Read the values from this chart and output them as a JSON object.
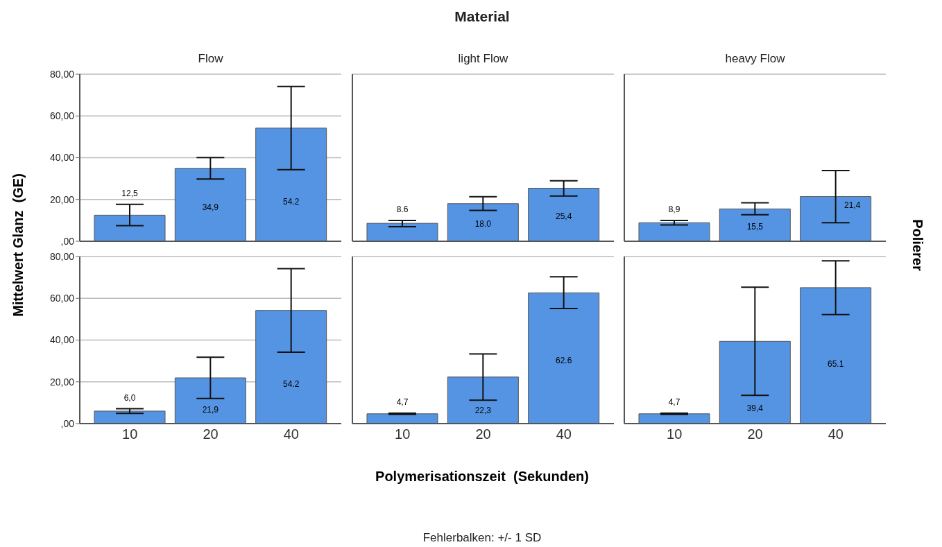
{
  "chart_data": [
    {
      "type": "bar",
      "title": "Flow",
      "ylabel": "Mittelwert Glanz  (GE)",
      "annotations": [
        "Material",
        "Fehlerbalken: +/- 1 SD"
      ],
      "categories": [
        "10",
        "20",
        "40"
      ],
      "values": [
        12.5,
        34.9,
        54.2
      ],
      "errors": [
        [
          7.5,
          17.7
        ],
        [
          29.8,
          40.1
        ],
        [
          34.3,
          74.1
        ]
      ],
      "value_labels": [
        "12,5",
        "34,9",
        "54.2"
      ],
      "color": "#5494e3",
      "ylim": [
        0,
        80
      ],
      "yticks": [
        {
          "value": 0,
          "label": ",00"
        },
        {
          "value": 20,
          "label": "20,00"
        },
        {
          "value": 40,
          "label": "40,00"
        },
        {
          "value": 60,
          "label": "60,00"
        },
        {
          "value": 80,
          "label": "80,00"
        }
      ],
      "grid": "y",
      "tick_labels": "y"
    },
    {
      "type": "bar",
      "title": "light Flow",
      "categories": [
        "10",
        "20",
        "40"
      ],
      "values": [
        8.6,
        18.0,
        25.4
      ],
      "errors": [
        [
          7.0,
          10.0
        ],
        [
          14.8,
          21.3
        ],
        [
          21.7,
          29.0
        ]
      ],
      "value_labels": [
        "8.6",
        "18.0",
        "25,4"
      ],
      "color": "#5494e3",
      "ylim": [
        0,
        80
      ],
      "yticks": [
        {
          "value": 0,
          "label": null
        },
        {
          "value": 20,
          "label": null
        },
        {
          "value": 40,
          "label": null
        },
        {
          "value": 60,
          "label": null
        },
        {
          "value": 80,
          "label": null
        }
      ],
      "grid": "y",
      "tick_labels": false
    },
    {
      "type": "bar",
      "title": "heavy Flow",
      "y2label": "Polierer",
      "categories": [
        "10",
        "20",
        "40"
      ],
      "values": [
        8.9,
        15.5,
        21.4
      ],
      "errors": [
        [
          7.8,
          10.0
        ],
        [
          12.7,
          18.4
        ],
        [
          8.9,
          33.9
        ]
      ],
      "value_labels": [
        "8,9",
        "15,5",
        "21,4"
      ],
      "color": "#5494e3",
      "ylim": [
        0,
        80
      ],
      "yticks": [
        {
          "value": 0,
          "label": null
        },
        {
          "value": 20,
          "label": null
        },
        {
          "value": 40,
          "label": null
        },
        {
          "value": 60,
          "label": null
        },
        {
          "value": 80,
          "label": null
        }
      ],
      "grid": "y",
      "tick_labels": false
    },
    {
      "type": "bar",
      "categories": [
        "10",
        "20",
        "40"
      ],
      "values": [
        6.0,
        21.9,
        54.2
      ],
      "errors": [
        [
          4.9,
          7.1
        ],
        [
          12.0,
          31.8
        ],
        [
          34.2,
          74.2
        ]
      ],
      "value_labels": [
        "6,0",
        "21,9",
        "54.2"
      ],
      "color": "#5494e3",
      "ylim": [
        0,
        80
      ],
      "yticks": [
        {
          "value": 0,
          "label": ",00"
        },
        {
          "value": 20,
          "label": "20,00"
        },
        {
          "value": 40,
          "label": "40,00"
        },
        {
          "value": 60,
          "label": "60,00"
        },
        {
          "value": 80,
          "label": "80,00"
        }
      ],
      "grid": "y"
    },
    {
      "type": "bar",
      "xlabel": "Polymerisationszeit  (Sekunden)",
      "categories": [
        "10",
        "20",
        "40"
      ],
      "values": [
        4.7,
        22.3,
        62.6
      ],
      "errors": [
        [
          4.4,
          5.0
        ],
        [
          11.2,
          33.4
        ],
        [
          55.1,
          70.3
        ]
      ],
      "value_labels": [
        "4,7",
        "22,3",
        "62.6"
      ],
      "color": "#5494e3",
      "ylim": [
        0,
        80
      ],
      "yticks": [
        {
          "value": 0,
          "label": null
        },
        {
          "value": 20,
          "label": null
        },
        {
          "value": 40,
          "label": null
        },
        {
          "value": 60,
          "label": null
        },
        {
          "value": 80,
          "label": null
        }
      ],
      "grid": "y",
      "tick_labels": "x"
    },
    {
      "type": "bar",
      "categories": [
        "10",
        "20",
        "40"
      ],
      "values": [
        4.7,
        39.4,
        65.1
      ],
      "errors": [
        [
          4.4,
          5.0
        ],
        [
          13.5,
          65.3
        ],
        [
          52.2,
          77.9
        ]
      ],
      "value_labels": [
        "4,7",
        "39,4",
        "65.1"
      ],
      "color": "#5494e3",
      "ylim": [
        0,
        80
      ],
      "yticks": [
        {
          "value": 0,
          "label": null
        },
        {
          "value": 20,
          "label": null
        },
        {
          "value": 40,
          "label": null
        },
        {
          "value": 60,
          "label": null
        },
        {
          "value": 80,
          "label": null
        }
      ],
      "grid": "y",
      "tick_labels": "x"
    }
  ]
}
